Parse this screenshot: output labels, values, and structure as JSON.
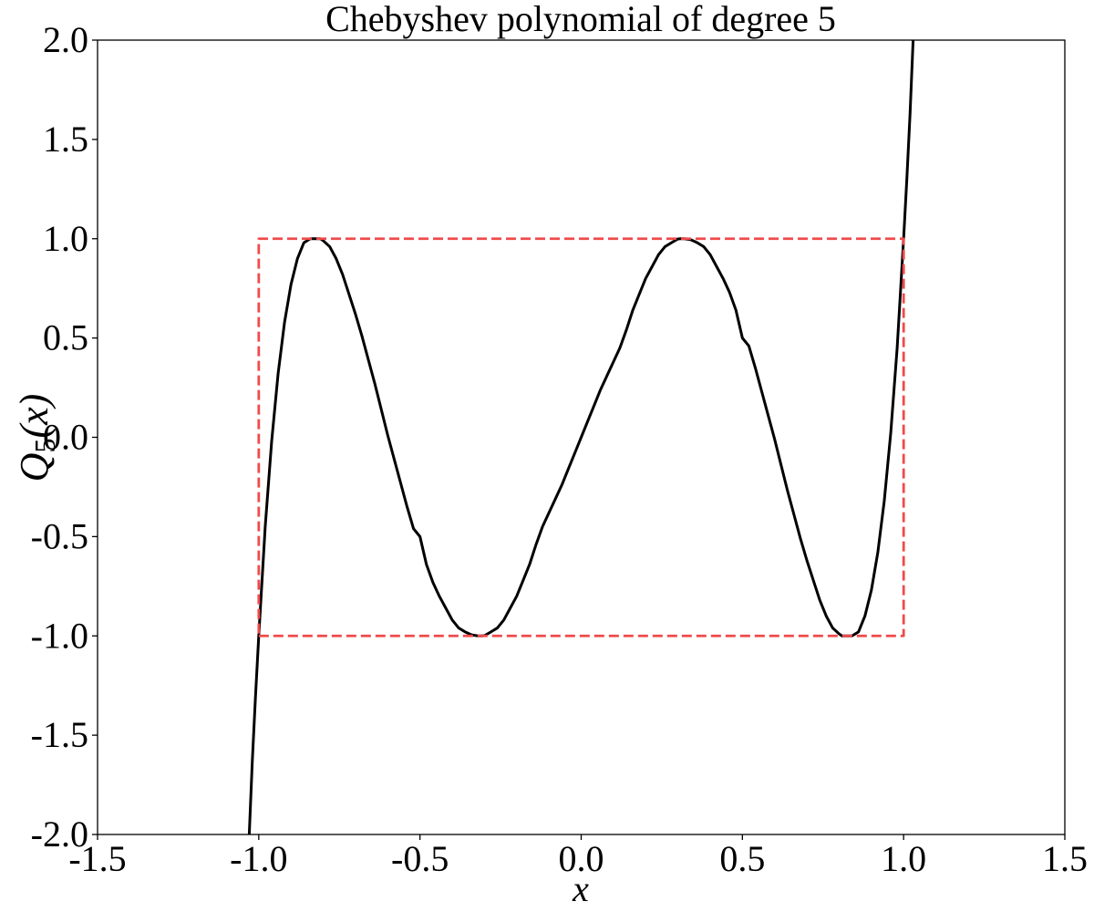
{
  "chart_data": {
    "type": "line",
    "title": "Chebyshev polynomial of degree 5",
    "xlabel": "x",
    "ylabel": {
      "main": "Q",
      "subscript": "5",
      "rest": "(x)"
    },
    "xlim": [
      -1.5,
      1.5
    ],
    "ylim": [
      -2.0,
      2.0
    ],
    "xticks": [
      -1.5,
      -1.0,
      -0.5,
      0.0,
      0.5,
      1.0,
      1.5
    ],
    "xtick_labels": [
      "-1.5",
      "-1.0",
      "-0.5",
      "0.0",
      "0.5",
      "1.0",
      "1.5"
    ],
    "yticks": [
      -2.0,
      -1.5,
      -1.0,
      -0.5,
      0.0,
      0.5,
      1.0,
      1.5,
      2.0
    ],
    "ytick_labels": [
      "-2.0",
      "-1.5",
      "-1.0",
      "-0.5",
      "0.0",
      "0.5",
      "1.0",
      "1.5",
      "2.0"
    ],
    "grid": false,
    "series": [
      {
        "style": "solid",
        "color": "#000000",
        "x": [
          -1.04,
          -1.03,
          -1.02,
          -1.01,
          -1.0,
          -0.98,
          -0.96,
          -0.94,
          -0.92,
          -0.9,
          -0.88,
          -0.86,
          -0.84,
          -0.82,
          -0.809,
          -0.8,
          -0.78,
          -0.76,
          -0.74,
          -0.72,
          -0.7,
          -0.68,
          -0.66,
          -0.64,
          -0.62,
          -0.6,
          -0.58,
          -0.56,
          -0.54,
          -0.52,
          -0.5,
          -0.48,
          -0.46,
          -0.44,
          -0.42,
          -0.4,
          -0.38,
          -0.36,
          -0.34,
          -0.32,
          -0.309,
          -0.3,
          -0.28,
          -0.26,
          -0.24,
          -0.22,
          -0.2,
          -0.18,
          -0.16,
          -0.14,
          -0.12,
          -0.1,
          -0.08,
          -0.06,
          -0.04,
          -0.02,
          0.0,
          0.02,
          0.04,
          0.06,
          0.08,
          0.1,
          0.12,
          0.14,
          0.16,
          0.18,
          0.2,
          0.22,
          0.24,
          0.26,
          0.28,
          0.3,
          0.309,
          0.32,
          0.34,
          0.36,
          0.38,
          0.4,
          0.42,
          0.44,
          0.46,
          0.48,
          0.5,
          0.52,
          0.54,
          0.56,
          0.58,
          0.6,
          0.62,
          0.64,
          0.66,
          0.68,
          0.7,
          0.72,
          0.74,
          0.76,
          0.78,
          0.8,
          0.809,
          0.82,
          0.84,
          0.86,
          0.88,
          0.9,
          0.92,
          0.94,
          0.96,
          0.98,
          1.0,
          1.01,
          1.02,
          1.03,
          1.04
        ],
        "y": [
          -2.44,
          -2.02,
          -1.63,
          -1.3,
          -1.0,
          -0.45,
          -0.02,
          0.32,
          0.58,
          0.77,
          0.9,
          0.98,
          1.0,
          1.0,
          1.0,
          0.99,
          0.96,
          0.9,
          0.82,
          0.72,
          0.62,
          0.51,
          0.39,
          0.27,
          0.14,
          0.01,
          -0.11,
          -0.23,
          -0.35,
          -0.46,
          -0.5,
          -0.64,
          -0.73,
          -0.8,
          -0.86,
          -0.92,
          -0.96,
          -0.98,
          -0.995,
          -1.0,
          -1.0,
          -0.999,
          -0.98,
          -0.96,
          -0.92,
          -0.86,
          -0.8,
          -0.72,
          -0.64,
          -0.54,
          -0.45,
          -0.38,
          -0.31,
          -0.24,
          -0.16,
          -0.08,
          0.0,
          0.08,
          0.16,
          0.24,
          0.31,
          0.38,
          0.45,
          0.54,
          0.64,
          0.72,
          0.8,
          0.86,
          0.92,
          0.96,
          0.98,
          0.999,
          1.0,
          1.0,
          0.995,
          0.98,
          0.96,
          0.92,
          0.86,
          0.8,
          0.73,
          0.64,
          0.5,
          0.46,
          0.35,
          0.23,
          0.11,
          -0.01,
          -0.14,
          -0.27,
          -0.39,
          -0.51,
          -0.62,
          -0.72,
          -0.82,
          -0.9,
          -0.96,
          -0.99,
          -1.0,
          -1.0,
          -1.0,
          -0.98,
          -0.9,
          -0.77,
          -0.58,
          -0.32,
          0.02,
          0.45,
          1.0,
          1.3,
          1.63,
          2.02,
          2.44
        ]
      },
      {
        "style": "dashed",
        "color": "#f04a4a",
        "x": [
          -1.0,
          1.0,
          1.0,
          -1.0,
          -1.0
        ],
        "y": [
          -1.0,
          -1.0,
          1.0,
          1.0,
          -1.0
        ]
      }
    ]
  }
}
